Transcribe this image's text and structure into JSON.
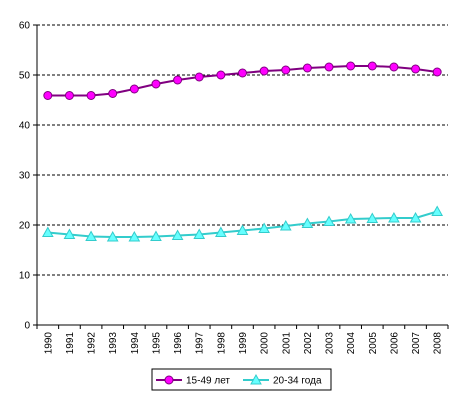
{
  "chart_data": {
    "type": "line",
    "title": "",
    "xlabel": "",
    "ylabel": "",
    "x": [
      "1990",
      "1991",
      "1992",
      "1993",
      "1994",
      "1995",
      "1996",
      "1997",
      "1998",
      "1999",
      "2000",
      "2001",
      "2002",
      "2003",
      "2004",
      "2005",
      "2006",
      "2007",
      "2008"
    ],
    "ylim": [
      0,
      60
    ],
    "yticks": [
      "0",
      "10",
      "20",
      "30",
      "40",
      "50",
      "60"
    ],
    "grid": true,
    "legend_position": "bottom",
    "series": [
      {
        "name": "15-49 лет",
        "color": "#800080",
        "marker_color": "#FF00FF",
        "marker": "circle",
        "values": [
          45.9,
          45.9,
          45.9,
          46.3,
          47.2,
          48.2,
          49.0,
          49.6,
          50.0,
          50.4,
          50.8,
          51.0,
          51.4,
          51.6,
          51.8,
          51.8,
          51.6,
          51.2,
          50.6
        ]
      },
      {
        "name": "20-34 года",
        "color": "#33CCCC",
        "marker_color": "#66FFFF",
        "marker": "triangle",
        "values": [
          18.5,
          18.1,
          17.7,
          17.6,
          17.6,
          17.7,
          17.9,
          18.1,
          18.5,
          18.9,
          19.3,
          19.8,
          20.3,
          20.7,
          21.2,
          21.3,
          21.4,
          21.4,
          22.7
        ]
      }
    ]
  }
}
